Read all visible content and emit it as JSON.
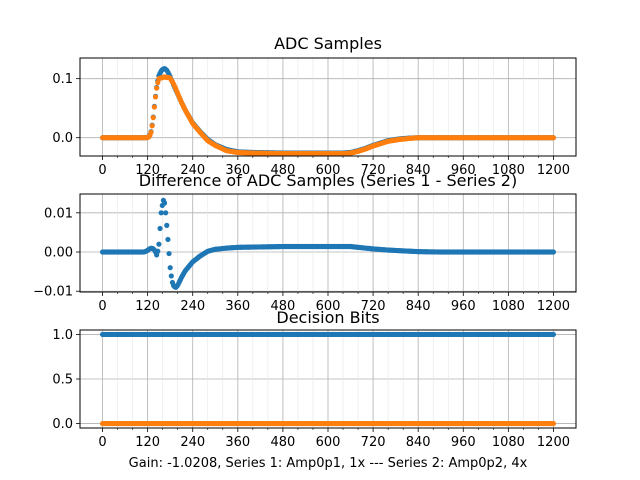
{
  "figure_caption": "Gain: -1.0208, Series 1: Amp0p1, 1x --- Series 2: Amp0p2, 4x",
  "colors": {
    "series1": "#1f77b4",
    "series2": "#ff7f0e",
    "grid": "#b0b0b0",
    "axes": "#000000"
  },
  "chart_data": [
    {
      "type": "scatter",
      "title": "ADC Samples",
      "xlabel": "",
      "ylabel": "",
      "xlim": [
        -60,
        1260
      ],
      "ylim": [
        -0.031,
        0.135
      ],
      "xticks": [
        0,
        120,
        240,
        360,
        480,
        600,
        720,
        840,
        960,
        1080,
        1200
      ],
      "xtick_labels": [
        "0",
        "120",
        "240",
        "360",
        "480",
        "600",
        "720",
        "840",
        "960",
        "1080",
        "1200"
      ],
      "yticks": [
        0.0,
        0.1
      ],
      "ytick_labels": [
        "0.0",
        "0.1"
      ],
      "grid": true,
      "series": [
        {
          "x": [
            0,
            100,
            118,
            125,
            130,
            135,
            140,
            145,
            150,
            155,
            160,
            165,
            170,
            175,
            180,
            190,
            200,
            210,
            220,
            240,
            260,
            280,
            300,
            330,
            360,
            400,
            480,
            560,
            640,
            660,
            680,
            700,
            720,
            740,
            760,
            790,
            820,
            840,
            900,
            1000,
            1100,
            1200
          ],
          "values": [
            0.0,
            0.0,
            0.0,
            0.003,
            0.012,
            0.035,
            0.065,
            0.09,
            0.105,
            0.112,
            0.116,
            0.117,
            0.115,
            0.11,
            0.103,
            0.088,
            0.074,
            0.06,
            0.047,
            0.025,
            0.01,
            -0.003,
            -0.012,
            -0.02,
            -0.024,
            -0.025,
            -0.026,
            -0.026,
            -0.026,
            -0.025,
            -0.022,
            -0.018,
            -0.013,
            -0.009,
            -0.005,
            -0.002,
            -0.0005,
            0.0,
            0.0,
            0.0,
            0.0,
            0.0
          ]
        },
        {
          "x": [
            0,
            100,
            118,
            125,
            130,
            135,
            140,
            145,
            150,
            155,
            160,
            165,
            170,
            175,
            180,
            190,
            200,
            210,
            220,
            240,
            260,
            280,
            300,
            330,
            360,
            400,
            480,
            560,
            640,
            660,
            680,
            700,
            720,
            740,
            760,
            790,
            820,
            840,
            900,
            1000,
            1100,
            1200
          ],
          "values": [
            0.0,
            0.0,
            0.0,
            0.002,
            0.011,
            0.034,
            0.064,
            0.089,
            0.1,
            0.101,
            0.102,
            0.103,
            0.102,
            0.102,
            0.101,
            0.09,
            0.075,
            0.06,
            0.047,
            0.024,
            0.009,
            -0.005,
            -0.013,
            -0.022,
            -0.025,
            -0.026,
            -0.027,
            -0.027,
            -0.027,
            -0.026,
            -0.023,
            -0.019,
            -0.014,
            -0.01,
            -0.006,
            -0.003,
            -0.001,
            0.0,
            0.0,
            0.0,
            0.0,
            0.0
          ]
        }
      ]
    },
    {
      "type": "scatter",
      "title": "Difference of ADC Samples (Series 1 - Series 2)",
      "xlabel": "",
      "ylabel": "",
      "xlim": [
        -60,
        1260
      ],
      "ylim": [
        -0.0102,
        0.0148
      ],
      "xticks": [
        0,
        120,
        240,
        360,
        480,
        600,
        720,
        840,
        960,
        1080,
        1200
      ],
      "xtick_labels": [
        "0",
        "120",
        "240",
        "360",
        "480",
        "600",
        "720",
        "840",
        "960",
        "1080",
        "1200"
      ],
      "yticks": [
        -0.01,
        0.0,
        0.01
      ],
      "ytick_labels": [
        "−0.01",
        "0.00",
        "0.01"
      ],
      "grid": true,
      "series": [
        {
          "x": [
            0,
            110,
            118,
            125,
            130,
            135,
            140,
            145,
            150,
            153,
            156,
            160,
            163,
            166,
            170,
            175,
            180,
            185,
            190,
            195,
            200,
            210,
            220,
            240,
            260,
            280,
            300,
            330,
            360,
            420,
            480,
            540,
            600,
            660,
            680,
            700,
            720,
            760,
            800,
            840,
            900,
            1000,
            1100,
            1200
          ],
          "values": [
            0.0,
            0.0,
            0.0003,
            0.0008,
            0.001,
            0.0008,
            0.0003,
            -0.001,
            0.002,
            0.006,
            0.01,
            0.0125,
            0.0135,
            0.012,
            0.008,
            0.002,
            -0.004,
            -0.0075,
            -0.0088,
            -0.009,
            -0.0085,
            -0.0065,
            -0.0048,
            -0.0025,
            -0.001,
            0.0002,
            0.0007,
            0.001,
            0.0012,
            0.0013,
            0.0014,
            0.0014,
            0.0014,
            0.0014,
            0.0012,
            0.001,
            0.0008,
            0.0005,
            0.0003,
            0.0001,
            0.0,
            0.0,
            0.0,
            0.0
          ]
        }
      ]
    },
    {
      "type": "scatter",
      "title": "Decision Bits",
      "xlabel": "Gain: -1.0208, Series 1: Amp0p1, 1x --- Series 2: Amp0p2, 4x",
      "ylabel": "",
      "xlim": [
        -60,
        1260
      ],
      "ylim": [
        -0.05,
        1.05
      ],
      "xticks": [
        0,
        120,
        240,
        360,
        480,
        600,
        720,
        840,
        960,
        1080,
        1200
      ],
      "xtick_labels": [
        "0",
        "120",
        "240",
        "360",
        "480",
        "600",
        "720",
        "840",
        "960",
        "1080",
        "1200"
      ],
      "yticks": [
        0.0,
        0.5,
        1.0
      ],
      "ytick_labels": [
        "0.0",
        "0.5",
        "1.0"
      ],
      "grid": true,
      "series": [
        {
          "x": [
            0,
            1200
          ],
          "values": [
            1.0,
            1.0
          ]
        },
        {
          "x": [
            0,
            1200
          ],
          "values": [
            0.0,
            0.0
          ]
        }
      ]
    }
  ]
}
